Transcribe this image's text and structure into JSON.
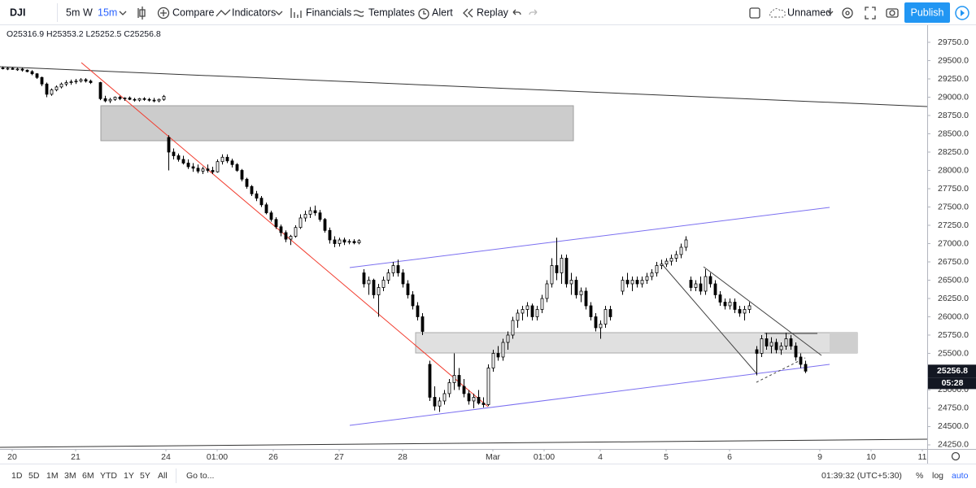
{
  "toolbar": {
    "symbol": "DJI",
    "intervals": [
      "5m",
      "W",
      "15m"
    ],
    "buttons": [
      "Compare",
      "Indicators",
      "Financials",
      "Templates",
      "Alert",
      "Replay"
    ],
    "layout_name": "Unnamed",
    "publish": "Publish"
  },
  "legend": {
    "ohlc": "O25316.9 H25353.2 L25252.5 C25256.8"
  },
  "last_price": {
    "value": 25256.8,
    "label": "25256.8",
    "countdown": "05:28"
  },
  "bottom_bar": {
    "ranges": [
      "1D",
      "5D",
      "1M",
      "3M",
      "6M",
      "YTD",
      "1Y",
      "5Y",
      "All"
    ],
    "goto": "Go to...",
    "clock": "01:39:32 (UTC+5:30)",
    "scale_options": [
      "%",
      "log",
      "auto"
    ]
  },
  "chart_data": {
    "type": "candlestick",
    "up_color": "#ffffff",
    "down_color": "#000000",
    "outline_color": "#000000",
    "xlim": [
      0,
      380
    ],
    "ylim": [
      24194,
      30028
    ],
    "xticks": [
      {
        "value": 5,
        "label": "20"
      },
      {
        "value": 31,
        "label": "21"
      },
      {
        "value": 68,
        "label": "24"
      },
      {
        "value": 89,
        "label": "01:00"
      },
      {
        "value": 112,
        "label": "26"
      },
      {
        "value": 139,
        "label": "27"
      },
      {
        "value": 165,
        "label": "28"
      },
      {
        "value": 202,
        "label": "Mar"
      },
      {
        "value": 223,
        "label": "01:00"
      },
      {
        "value": 246,
        "label": "4"
      },
      {
        "value": 273,
        "label": "5"
      },
      {
        "value": 299,
        "label": "6"
      },
      {
        "value": 336,
        "label": "9"
      },
      {
        "value": 357,
        "label": "10"
      },
      {
        "value": 378,
        "label": "11"
      }
    ],
    "yticks": [
      {
        "value": 24250,
        "label": "24250.0"
      },
      {
        "value": 24500,
        "label": "24500.0"
      },
      {
        "value": 24750,
        "label": "24750.0"
      },
      {
        "value": 25000,
        "label": "25000.0"
      },
      {
        "value": 25250,
        "label": "25250.0"
      },
      {
        "value": 25500,
        "label": "25500.0"
      },
      {
        "value": 25750,
        "label": "25750.0"
      },
      {
        "value": 26000,
        "label": "26000.0"
      },
      {
        "value": 26250,
        "label": "26250.0"
      },
      {
        "value": 26500,
        "label": "26500.0"
      },
      {
        "value": 26750,
        "label": "26750.0"
      },
      {
        "value": 27000,
        "label": "27000.0"
      },
      {
        "value": 27250,
        "label": "27250.0"
      },
      {
        "value": 27500,
        "label": "27500.0"
      },
      {
        "value": 27750,
        "label": "27750.0"
      },
      {
        "value": 28000,
        "label": "28000.0"
      },
      {
        "value": 28250,
        "label": "28250.0"
      },
      {
        "value": 28500,
        "label": "28500.0"
      },
      {
        "value": 28750,
        "label": "28750.0"
      },
      {
        "value": 29000,
        "label": "29000.0"
      },
      {
        "value": 29250,
        "label": "29250.0"
      },
      {
        "value": 29500,
        "label": "29500.0"
      },
      {
        "value": 29750,
        "label": "29750.0"
      }
    ],
    "candles": [
      [
        1,
        29400,
        29420,
        29380,
        29390
      ],
      [
        3,
        29390,
        29410,
        29370,
        29395
      ],
      [
        5,
        29395,
        29410,
        29375,
        29380
      ],
      [
        7,
        29380,
        29400,
        29360,
        29385
      ],
      [
        9,
        29385,
        29400,
        29350,
        29370
      ],
      [
        11,
        29370,
        29380,
        29340,
        29350
      ],
      [
        13,
        29350,
        29370,
        29300,
        29320
      ],
      [
        15,
        29320,
        29330,
        29250,
        29270
      ],
      [
        17,
        29270,
        29280,
        29150,
        29180
      ],
      [
        19,
        29180,
        29200,
        29000,
        29040
      ],
      [
        21,
        29040,
        29120,
        29020,
        29100
      ],
      [
        23,
        29100,
        29160,
        29080,
        29140
      ],
      [
        25,
        29140,
        29200,
        29120,
        29180
      ],
      [
        27,
        29180,
        29230,
        29150,
        29200
      ],
      [
        29,
        29200,
        29240,
        29170,
        29210
      ],
      [
        31,
        29210,
        29250,
        29180,
        29220
      ],
      [
        33,
        29220,
        29260,
        29200,
        29240
      ],
      [
        35,
        29240,
        29260,
        29200,
        29220
      ],
      [
        37,
        29220,
        29240,
        29180,
        29200
      ],
      [
        41,
        29200,
        29210,
        28960,
        28980
      ],
      [
        43,
        28980,
        29020,
        28930,
        28950
      ],
      [
        45,
        28950,
        28990,
        28920,
        28970
      ],
      [
        47,
        28970,
        29010,
        28950,
        29000
      ],
      [
        49,
        29000,
        29020,
        28960,
        28980
      ],
      [
        51,
        28980,
        29000,
        28950,
        28990
      ],
      [
        53,
        28990,
        29010,
        28960,
        28970
      ],
      [
        55,
        28970,
        28990,
        28940,
        28960
      ],
      [
        57,
        28960,
        28990,
        28940,
        28980
      ],
      [
        59,
        28980,
        29000,
        28950,
        28970
      ],
      [
        61,
        28970,
        28990,
        28940,
        28960
      ],
      [
        63,
        28960,
        28990,
        28930,
        28950
      ],
      [
        65,
        28950,
        28980,
        28930,
        28970
      ],
      [
        67,
        28970,
        29030,
        28950,
        29010
      ],
      [
        69,
        28450,
        28480,
        28000,
        28250
      ],
      [
        71,
        28250,
        28300,
        28150,
        28200
      ],
      [
        73,
        28200,
        28230,
        28120,
        28150
      ],
      [
        75,
        28150,
        28200,
        28080,
        28100
      ],
      [
        77,
        28100,
        28150,
        28020,
        28050
      ],
      [
        79,
        28050,
        28100,
        27980,
        28030
      ],
      [
        81,
        28030,
        28080,
        27960,
        27990
      ],
      [
        83,
        27990,
        28050,
        27950,
        28020
      ],
      [
        85,
        28020,
        28080,
        27970,
        28000
      ],
      [
        87,
        28000,
        28050,
        27950,
        27980
      ],
      [
        89,
        27980,
        28150,
        27970,
        28120
      ],
      [
        91,
        28120,
        28220,
        28080,
        28180
      ],
      [
        93,
        28180,
        28220,
        28100,
        28130
      ],
      [
        95,
        28130,
        28160,
        28040,
        28080
      ],
      [
        97,
        28080,
        28100,
        27980,
        28000
      ],
      [
        99,
        28000,
        28020,
        27850,
        27880
      ],
      [
        101,
        27880,
        27900,
        27750,
        27780
      ],
      [
        103,
        27780,
        27800,
        27650,
        27680
      ],
      [
        105,
        27680,
        27720,
        27580,
        27620
      ],
      [
        107,
        27620,
        27650,
        27500,
        27530
      ],
      [
        109,
        27530,
        27560,
        27400,
        27420
      ],
      [
        111,
        27420,
        27450,
        27300,
        27330
      ],
      [
        113,
        27330,
        27360,
        27200,
        27230
      ],
      [
        115,
        27230,
        27260,
        27100,
        27150
      ],
      [
        117,
        27150,
        27180,
        27020,
        27060
      ],
      [
        119,
        27060,
        27120,
        26980,
        27100
      ],
      [
        121,
        27100,
        27250,
        27080,
        27220
      ],
      [
        123,
        27220,
        27400,
        27200,
        27350
      ],
      [
        125,
        27350,
        27450,
        27300,
        27400
      ],
      [
        127,
        27400,
        27500,
        27350,
        27450
      ],
      [
        129,
        27450,
        27520,
        27380,
        27420
      ],
      [
        131,
        27420,
        27460,
        27300,
        27330
      ],
      [
        133,
        27330,
        27350,
        27150,
        27180
      ],
      [
        135,
        27180,
        27220,
        27000,
        27050
      ],
      [
        137,
        27050,
        27100,
        26950,
        27000
      ],
      [
        139,
        27000,
        27080,
        26960,
        27050
      ],
      [
        141,
        27050,
        27080,
        26980,
        27020
      ],
      [
        143,
        27020,
        27060,
        26990,
        27030
      ],
      [
        145,
        27030,
        27060,
        26990,
        27010
      ],
      [
        147,
        27010,
        27060,
        26990,
        27040
      ],
      [
        149,
        26600,
        26650,
        26400,
        26450
      ],
      [
        151,
        26450,
        26550,
        26300,
        26500
      ],
      [
        153,
        26500,
        26520,
        26250,
        26300
      ],
      [
        155,
        26300,
        26450,
        26000,
        26400
      ],
      [
        157,
        26400,
        26550,
        26350,
        26500
      ],
      [
        159,
        26500,
        26650,
        26450,
        26600
      ],
      [
        161,
        26600,
        26750,
        26550,
        26700
      ],
      [
        163,
        26700,
        26780,
        26550,
        26600
      ],
      [
        165,
        26600,
        26650,
        26400,
        26450
      ],
      [
        167,
        26450,
        26500,
        26250,
        26300
      ],
      [
        169,
        26300,
        26350,
        26100,
        26150
      ],
      [
        171,
        26150,
        26200,
        25950,
        26000
      ],
      [
        173,
        26000,
        26050,
        25750,
        25800
      ],
      [
        176,
        25350,
        25400,
        24850,
        24900
      ],
      [
        178,
        24900,
        25050,
        24720,
        24780
      ],
      [
        180,
        24780,
        24900,
        24700,
        24850
      ],
      [
        182,
        24850,
        25000,
        24800,
        24950
      ],
      [
        184,
        24950,
        25150,
        24900,
        25100
      ],
      [
        186,
        25100,
        25500,
        25000,
        25200
      ],
      [
        188,
        25200,
        25300,
        25000,
        25050
      ],
      [
        190,
        25050,
        25150,
        24900,
        24950
      ],
      [
        192,
        24950,
        25000,
        24800,
        24850
      ],
      [
        194,
        24850,
        24950,
        24750,
        24900
      ],
      [
        196,
        24900,
        25000,
        24800,
        24820
      ],
      [
        198,
        24820,
        24900,
        24760,
        24800
      ],
      [
        200,
        24800,
        25350,
        24780,
        25300
      ],
      [
        202,
        25300,
        25550,
        25250,
        25500
      ],
      [
        204,
        25500,
        25600,
        25400,
        25450
      ],
      [
        206,
        25450,
        25700,
        25400,
        25650
      ],
      [
        208,
        25650,
        25800,
        25550,
        25750
      ],
      [
        210,
        25750,
        26000,
        25700,
        25950
      ],
      [
        212,
        25950,
        26100,
        25850,
        26050
      ],
      [
        214,
        26050,
        26150,
        25950,
        26100
      ],
      [
        216,
        26100,
        26200,
        26000,
        26150
      ],
      [
        218,
        26150,
        26180,
        25950,
        26000
      ],
      [
        220,
        26000,
        26150,
        25950,
        26100
      ],
      [
        222,
        26100,
        26300,
        26050,
        26250
      ],
      [
        224,
        26250,
        26500,
        26200,
        26450
      ],
      [
        226,
        26450,
        26800,
        26400,
        26700
      ],
      [
        228,
        26700,
        27080,
        26500,
        26600
      ],
      [
        230,
        26600,
        26850,
        26450,
        26800
      ],
      [
        232,
        26800,
        26850,
        26400,
        26450
      ],
      [
        234,
        26450,
        26600,
        26300,
        26500
      ],
      [
        236,
        26500,
        26550,
        26250,
        26300
      ],
      [
        238,
        26300,
        26400,
        26200,
        26350
      ],
      [
        240,
        26350,
        26400,
        26100,
        26150
      ],
      [
        242,
        26150,
        26200,
        25950,
        26000
      ],
      [
        244,
        26000,
        26050,
        25800,
        25850
      ],
      [
        246,
        25850,
        25950,
        25700,
        25900
      ],
      [
        248,
        25900,
        26150,
        25850,
        26100
      ],
      [
        250,
        26100,
        26150,
        25950,
        26000
      ],
      [
        255,
        26350,
        26550,
        26300,
        26500
      ],
      [
        257,
        26500,
        26600,
        26400,
        26450
      ],
      [
        259,
        26450,
        26550,
        26350,
        26500
      ],
      [
        261,
        26500,
        26550,
        26400,
        26450
      ],
      [
        263,
        26450,
        26550,
        26400,
        26500
      ],
      [
        265,
        26500,
        26600,
        26450,
        26550
      ],
      [
        267,
        26550,
        26650,
        26500,
        26600
      ],
      [
        269,
        26600,
        26750,
        26550,
        26700
      ],
      [
        271,
        26700,
        26780,
        26650,
        26720
      ],
      [
        273,
        26720,
        26800,
        26680,
        26760
      ],
      [
        275,
        26760,
        26850,
        26700,
        26800
      ],
      [
        277,
        26800,
        26900,
        26750,
        26850
      ],
      [
        279,
        26850,
        27000,
        26800,
        26950
      ],
      [
        281,
        26950,
        27100,
        26900,
        27050
      ],
      [
        283,
        26500,
        26550,
        26350,
        26400
      ],
      [
        285,
        26400,
        26500,
        26350,
        26450
      ],
      [
        287,
        26450,
        26550,
        26300,
        26350
      ],
      [
        289,
        26350,
        26650,
        26300,
        26550
      ],
      [
        291,
        26550,
        26600,
        26400,
        26450
      ],
      [
        293,
        26450,
        26500,
        26250,
        26300
      ],
      [
        295,
        26300,
        26350,
        26150,
        26200
      ],
      [
        297,
        26200,
        26250,
        26100,
        26150
      ],
      [
        299,
        26150,
        26250,
        26100,
        26200
      ],
      [
        301,
        26200,
        26250,
        26050,
        26100
      ],
      [
        303,
        26100,
        26150,
        26000,
        26050
      ],
      [
        305,
        26050,
        26150,
        25950,
        26100
      ],
      [
        307,
        26100,
        26200,
        26050,
        26150
      ],
      [
        310,
        25550,
        25600,
        25200,
        25500
      ],
      [
        312,
        25500,
        25750,
        25450,
        25700
      ],
      [
        314,
        25700,
        25780,
        25550,
        25600
      ],
      [
        316,
        25600,
        25720,
        25500,
        25650
      ],
      [
        318,
        25650,
        25700,
        25500,
        25550
      ],
      [
        320,
        25550,
        25650,
        25480,
        25600
      ],
      [
        322,
        25600,
        25780,
        25550,
        25700
      ],
      [
        324,
        25700,
        25750,
        25550,
        25600
      ],
      [
        326,
        25600,
        25650,
        25400,
        25450
      ],
      [
        328,
        25450,
        25500,
        25300,
        25350
      ],
      [
        330,
        25350,
        25400,
        25230,
        25257
      ]
    ]
  }
}
